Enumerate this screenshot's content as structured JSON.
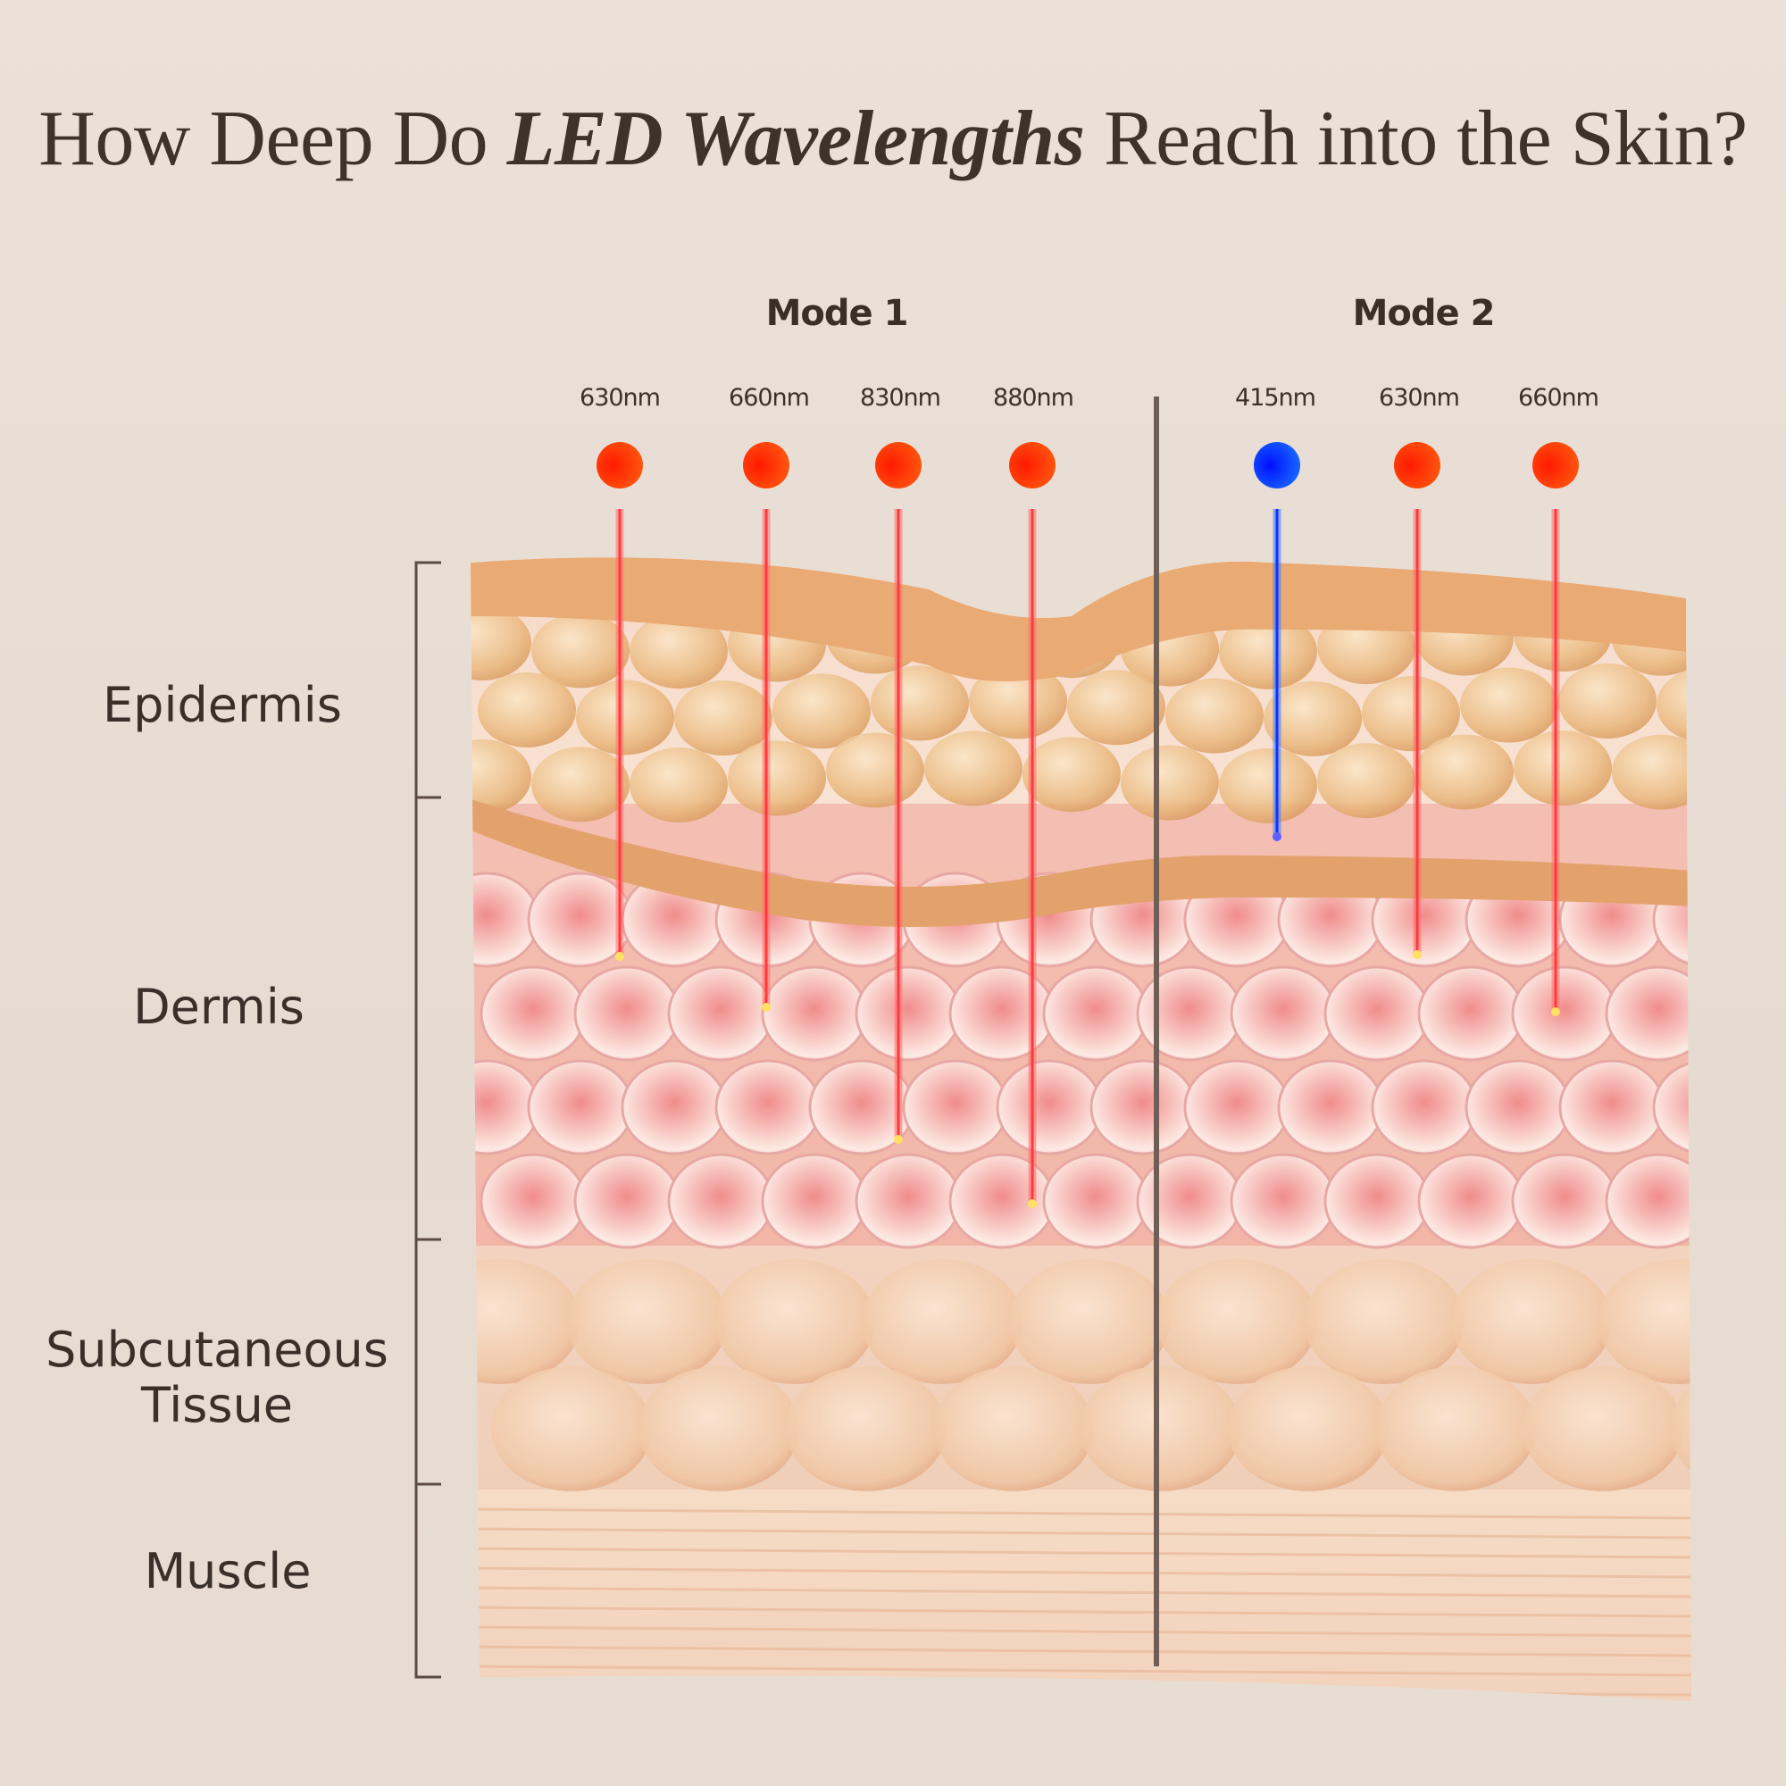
{
  "title": {
    "prefix": "How Deep Do ",
    "emphasis": "LED Wavelengths",
    "suffix": " Reach into the Skin?"
  },
  "modes": [
    {
      "label": "Mode 1",
      "lights": [
        {
          "wavelength": "630nm",
          "color": "#ff3300",
          "reaches": "Dermis (upper)"
        },
        {
          "wavelength": "660nm",
          "color": "#ff3300",
          "reaches": "Dermis"
        },
        {
          "wavelength": "830nm",
          "color": "#ff3300",
          "reaches": "Dermis (deep)"
        },
        {
          "wavelength": "880nm",
          "color": "#ff3300",
          "reaches": "Dermis (deepest)"
        }
      ]
    },
    {
      "label": "Mode 2",
      "lights": [
        {
          "wavelength": "415nm",
          "color": "#0022ff",
          "reaches": "Epidermis"
        },
        {
          "wavelength": "630nm",
          "color": "#ff3300",
          "reaches": "Dermis (upper)"
        },
        {
          "wavelength": "660nm",
          "color": "#ff3300",
          "reaches": "Dermis"
        }
      ]
    }
  ],
  "layers": [
    {
      "label": "Epidermis"
    },
    {
      "label": "Dermis"
    },
    {
      "label": "Subcutaneous\nTissue"
    },
    {
      "label": "Muscle"
    }
  ],
  "colors": {
    "red_light": "#ff3300",
    "blue_light": "#0022ff",
    "divider": "#6e5e55",
    "background": "#e8ddd3"
  }
}
